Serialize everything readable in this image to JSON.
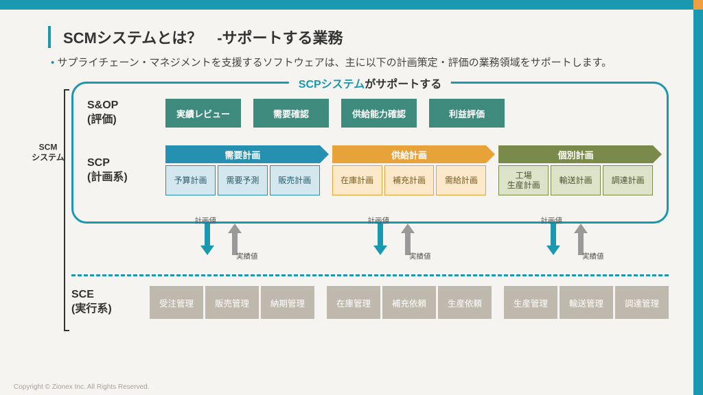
{
  "title": "SCMシステムとは？　-サポートする業務",
  "bullet": "サプライチェーン・マネジメントを支援するソフトウェアは、主に以下の計画策定・評価の業務領域をサポートします。",
  "scp_legend_bold": "SCPシステム",
  "scp_legend_rest": "がサポートする",
  "scm_system_label": "SCM\nシステム",
  "sop": {
    "label": "S&OP\n(評価)",
    "items": [
      "実績レビュー",
      "需要確認",
      "供給能力確認",
      "利益評価"
    ]
  },
  "scp": {
    "label": "SCP\n(計画系)",
    "groups": [
      {
        "key": "demand",
        "header": "需要計画",
        "cells": [
          "予算計画",
          "需要予測",
          "販売計画"
        ]
      },
      {
        "key": "supply",
        "header": "供給計画",
        "cells": [
          "在庫計画",
          "補充計画",
          "需給計画"
        ]
      },
      {
        "key": "indiv",
        "header": "個別計画",
        "cells": [
          "工場\n生産計画",
          "輸送計画",
          "調達計画"
        ]
      }
    ]
  },
  "arrows": {
    "plan_label": "計画値",
    "actual_label": "実績値"
  },
  "sce": {
    "label": "SCE\n(実行系)",
    "groups": [
      [
        "受注管理",
        "販売管理",
        "納期管理"
      ],
      [
        "在庫管理",
        "補充依頼",
        "生産依頼"
      ],
      [
        "生産管理",
        "輸送管理",
        "調達管理"
      ]
    ]
  },
  "copyright": "Copyright © Zionex Inc. All Rights Reserved.",
  "colors": {
    "teal": "#1998b0",
    "orange": "#e8a94a",
    "sop": "#3e8a7c",
    "demand": "#2690b0",
    "supply": "#e8a23a",
    "indiv": "#7a8a4a",
    "sce": "#bfb9ad",
    "bg": "#f5f4f0"
  }
}
